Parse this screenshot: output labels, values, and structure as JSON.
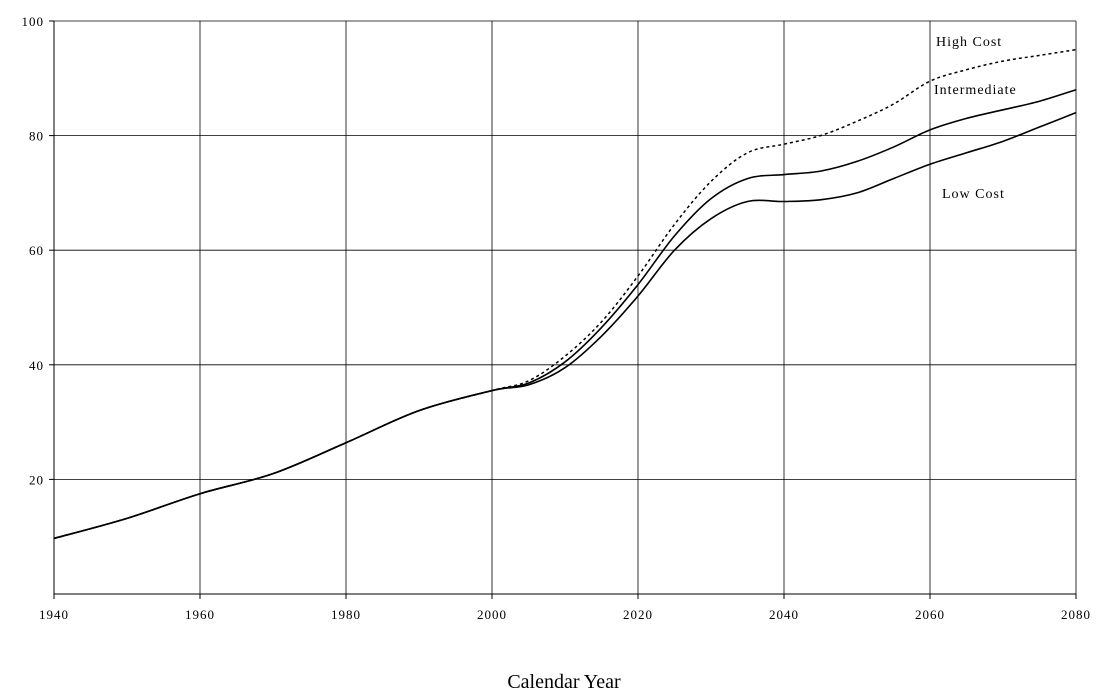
{
  "chart_data": {
    "type": "line",
    "title": "",
    "xlabel": "Calendar Year",
    "ylabel": "",
    "xlim": [
      1940,
      2080
    ],
    "ylim": [
      0,
      100
    ],
    "grid": true,
    "legend": "inline labels at right",
    "xticks": [
      1940,
      1960,
      1980,
      2000,
      2020,
      2040,
      2060,
      2080
    ],
    "yticks": [
      20,
      40,
      60,
      80,
      100
    ],
    "series": [
      {
        "name": "High Cost",
        "style": "dotted",
        "x": [
          1940,
          1950,
          1960,
          1970,
          1980,
          1990,
          2000,
          2005,
          2010,
          2015,
          2020,
          2025,
          2030,
          2035,
          2040,
          2045,
          2050,
          2055,
          2060,
          2065,
          2070,
          2075,
          2080
        ],
        "y": [
          9.7,
          13.2,
          17.5,
          21.0,
          26.4,
          32.0,
          35.5,
          37.2,
          41.5,
          47.5,
          55.5,
          64.5,
          72.0,
          77.0,
          78.5,
          80.0,
          82.5,
          85.5,
          89.5,
          91.5,
          93.0,
          94.0,
          95.0
        ]
      },
      {
        "name": "Intermediate",
        "style": "solid",
        "x": [
          1940,
          1950,
          1960,
          1970,
          1980,
          1990,
          2000,
          2005,
          2010,
          2015,
          2020,
          2025,
          2030,
          2035,
          2040,
          2045,
          2050,
          2055,
          2060,
          2065,
          2070,
          2075,
          2080
        ],
        "y": [
          9.7,
          13.2,
          17.5,
          21.0,
          26.4,
          32.0,
          35.5,
          36.8,
          40.5,
          46.5,
          54.0,
          62.5,
          69.0,
          72.5,
          73.2,
          73.8,
          75.5,
          78.0,
          81.0,
          83.0,
          84.5,
          86.0,
          88.0
        ]
      },
      {
        "name": "Low Cost",
        "style": "solid",
        "x": [
          1940,
          1950,
          1960,
          1970,
          1980,
          1990,
          2000,
          2005,
          2010,
          2015,
          2020,
          2025,
          2030,
          2035,
          2040,
          2045,
          2050,
          2055,
          2060,
          2065,
          2070,
          2075,
          2080
        ],
        "y": [
          9.7,
          13.2,
          17.5,
          21.0,
          26.4,
          32.0,
          35.5,
          36.5,
          39.5,
          45.0,
          52.0,
          60.0,
          65.5,
          68.5,
          68.5,
          68.8,
          70.0,
          72.5,
          75.0,
          77.0,
          79.0,
          81.5,
          84.0
        ]
      }
    ]
  }
}
